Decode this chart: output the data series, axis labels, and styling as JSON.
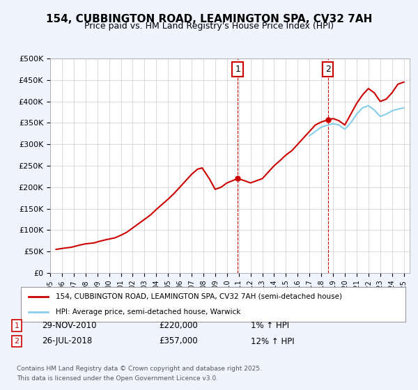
{
  "title_line1": "154, CUBBINGTON ROAD, LEAMINGTON SPA, CV32 7AH",
  "title_line2": "Price paid vs. HM Land Registry's House Price Index (HPI)",
  "ylabel": "",
  "ylim": [
    0,
    500000
  ],
  "yticks": [
    0,
    50000,
    100000,
    150000,
    200000,
    250000,
    300000,
    350000,
    400000,
    450000,
    500000
  ],
  "background_color": "#f0f4ff",
  "plot_bg_color": "#ffffff",
  "red_color": "#cc0000",
  "blue_color": "#87CEEB",
  "grid_color": "#cccccc",
  "annotation1": {
    "label": "1",
    "date": "2010-11-29",
    "price": 220000,
    "x": 2010.91
  },
  "annotation2": {
    "label": "2",
    "date": "2018-07-26",
    "price": 357000,
    "x": 2018.57
  },
  "legend_label_red": "154, CUBBINGTON ROAD, LEAMINGTON SPA, CV32 7AH (semi-detached house)",
  "legend_label_blue": "HPI: Average price, semi-detached house, Warwick",
  "footer_line1": "Contains HM Land Registry data © Crown copyright and database right 2025.",
  "footer_line2": "This data is licensed under the Open Government Licence v3.0.",
  "note1_date": "29-NOV-2010",
  "note1_price": "£220,000",
  "note1_hpi": "1% ↑ HPI",
  "note2_date": "26-JUL-2018",
  "note2_price": "£357,000",
  "note2_hpi": "12% ↑ HPI",
  "red_x": [
    1995.5,
    1996.2,
    1996.8,
    1997.5,
    1998.0,
    1998.7,
    1999.2,
    1999.8,
    2000.5,
    2001.0,
    2001.5,
    2002.0,
    2002.5,
    2003.0,
    2003.5,
    2004.0,
    2004.5,
    2005.0,
    2005.5,
    2006.0,
    2006.5,
    2007.0,
    2007.5,
    2007.9,
    2008.5,
    2009.0,
    2009.5,
    2010.0,
    2010.91,
    2011.5,
    2012.0,
    2012.5,
    2013.0,
    2013.5,
    2014.0,
    2014.5,
    2015.0,
    2015.5,
    2016.0,
    2016.5,
    2017.0,
    2017.5,
    2018.0,
    2018.57,
    2019.0,
    2019.5,
    2020.0,
    2020.5,
    2021.0,
    2021.5,
    2022.0,
    2022.5,
    2023.0,
    2023.5,
    2024.0,
    2024.5,
    2025.0
  ],
  "red_y": [
    55000,
    58000,
    60000,
    65000,
    68000,
    70000,
    74000,
    78000,
    82000,
    88000,
    95000,
    105000,
    115000,
    125000,
    135000,
    148000,
    160000,
    172000,
    185000,
    200000,
    215000,
    230000,
    242000,
    245000,
    220000,
    195000,
    200000,
    210000,
    220000,
    215000,
    210000,
    215000,
    220000,
    235000,
    250000,
    262000,
    275000,
    285000,
    300000,
    315000,
    330000,
    345000,
    352000,
    357000,
    360000,
    355000,
    345000,
    370000,
    395000,
    415000,
    430000,
    420000,
    400000,
    405000,
    420000,
    440000,
    445000
  ],
  "blue_x": [
    2017.0,
    2017.5,
    2018.0,
    2018.57,
    2019.0,
    2019.5,
    2020.0,
    2020.5,
    2021.0,
    2021.5,
    2022.0,
    2022.5,
    2023.0,
    2023.5,
    2024.0,
    2024.5,
    2025.0
  ],
  "blue_y": [
    320000,
    330000,
    340000,
    345000,
    348000,
    345000,
    335000,
    350000,
    370000,
    385000,
    390000,
    380000,
    365000,
    370000,
    378000,
    382000,
    385000
  ],
  "dashed_x1": 2010.91,
  "dashed_x2": 2018.57,
  "xmin": 1995,
  "xmax": 2025.5
}
